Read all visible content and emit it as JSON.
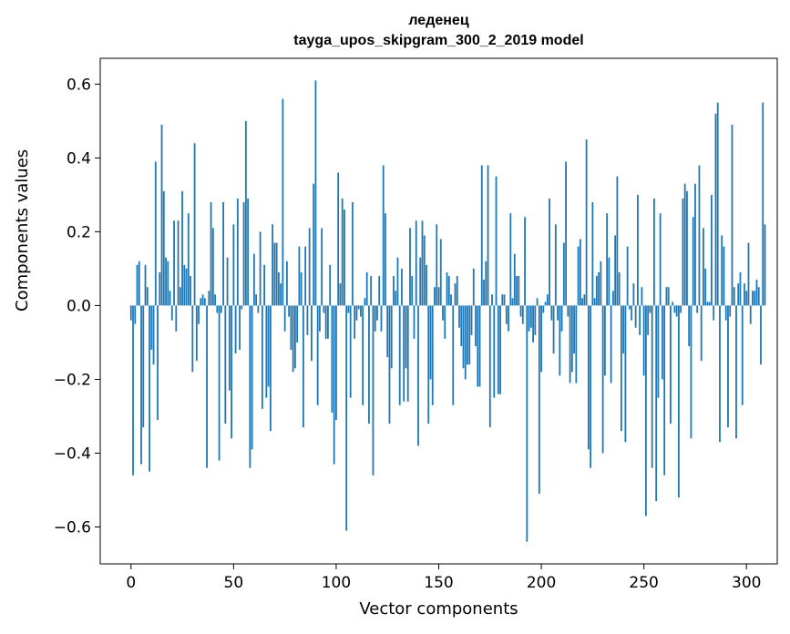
{
  "chart_data": {
    "type": "bar",
    "title_line1": "леденец",
    "title_line2": "tayga_upos_skipgram_300_2_2019 model",
    "xlabel": "Vector components",
    "ylabel": "Components values",
    "xlim": [
      -15,
      315
    ],
    "ylim": [
      -0.7,
      0.67
    ],
    "xticks": [
      0,
      50,
      100,
      150,
      200,
      250,
      300
    ],
    "yticks": [
      -0.6,
      -0.4,
      -0.2,
      0.0,
      0.2,
      0.4,
      0.6
    ],
    "ytick_labels": [
      "−0.6",
      "−0.4",
      "−0.2",
      "0.0",
      "0.2",
      "0.4",
      "0.6"
    ],
    "bar_color": "#1f77b4",
    "values": [
      -0.04,
      -0.46,
      -0.05,
      0.11,
      0.12,
      -0.43,
      -0.33,
      0.11,
      0.05,
      -0.45,
      -0.12,
      -0.16,
      0.39,
      -0.31,
      0.09,
      0.49,
      0.31,
      0.13,
      0.12,
      0.04,
      -0.04,
      0.23,
      -0.07,
      0.23,
      0.05,
      0.31,
      0.11,
      0.1,
      0.25,
      0.08,
      -0.18,
      0.44,
      -0.15,
      -0.05,
      0.02,
      0.03,
      0.02,
      -0.44,
      0.04,
      0.28,
      0.21,
      0.03,
      -0.02,
      -0.42,
      -0.02,
      0.28,
      -0.32,
      0.13,
      -0.23,
      -0.36,
      0.22,
      -0.13,
      0.29,
      -0.12,
      -0.01,
      0.28,
      0.5,
      0.29,
      -0.44,
      -0.39,
      0.14,
      0.03,
      -0.02,
      0.2,
      -0.28,
      0.11,
      -0.25,
      -0.22,
      -0.34,
      0.22,
      0.17,
      0.17,
      0.09,
      0.06,
      0.56,
      -0.07,
      0.12,
      -0.03,
      -0.12,
      -0.18,
      -0.17,
      -0.1,
      0.16,
      0.09,
      -0.33,
      0.16,
      -0.08,
      0.21,
      -0.15,
      0.33,
      0.61,
      -0.27,
      -0.07,
      0.21,
      -0.02,
      -0.09,
      -0.09,
      0.11,
      -0.29,
      -0.43,
      -0.31,
      0.36,
      0.06,
      0.29,
      0.26,
      -0.61,
      -0.02,
      -0.25,
      0.28,
      -0.09,
      -0.04,
      -0.01,
      -0.03,
      -0.27,
      0.02,
      0.09,
      -0.32,
      0.08,
      -0.46,
      -0.07,
      -0.04,
      0.08,
      -0.07,
      0.38,
      0.25,
      -0.14,
      -0.32,
      -0.17,
      0.08,
      0.04,
      0.13,
      -0.27,
      0.1,
      -0.26,
      -0.17,
      -0.26,
      0.21,
      0.08,
      -0.09,
      0.23,
      -0.38,
      0.13,
      0.23,
      0.19,
      0.11,
      -0.32,
      -0.2,
      -0.27,
      0.05,
      0.22,
      0.05,
      0.18,
      -0.04,
      -0.09,
      0.09,
      0.08,
      0.03,
      -0.27,
      0.06,
      0.08,
      -0.06,
      -0.11,
      -0.17,
      -0.2,
      -0.16,
      -0.16,
      -0.08,
      0.1,
      -0.11,
      -0.22,
      -0.22,
      0.38,
      0.07,
      0.12,
      0.38,
      -0.33,
      0.03,
      -0.25,
      0.35,
      -0.24,
      -0.24,
      0.03,
      0.03,
      -0.05,
      -0.07,
      0.25,
      0.02,
      0.14,
      0.08,
      0.08,
      -0.03,
      -0.05,
      0.24,
      -0.64,
      -0.07,
      -0.06,
      -0.1,
      -0.08,
      0.02,
      -0.51,
      -0.18,
      -0.02,
      0.01,
      0.03,
      0.29,
      -0.04,
      -0.13,
      0.22,
      -0.04,
      -0.19,
      -0.07,
      0.17,
      0.39,
      -0.03,
      -0.21,
      -0.18,
      -0.13,
      -0.21,
      0.16,
      0.18,
      0.02,
      0.03,
      0.45,
      -0.39,
      -0.44,
      0.28,
      0.02,
      0.08,
      0.09,
      0.12,
      -0.4,
      -0.19,
      0.25,
      0.13,
      -0.21,
      0.04,
      0.19,
      0.35,
      0.09,
      -0.34,
      -0.13,
      -0.37,
      0.16,
      -0.01,
      -0.04,
      0.06,
      -0.06,
      0.3,
      -0.08,
      0.05,
      -0.19,
      -0.57,
      -0.08,
      -0.02,
      -0.44,
      0.29,
      -0.53,
      -0.25,
      0.25,
      -0.2,
      -0.46,
      0.05,
      0.05,
      -0.32,
      0.01,
      -0.02,
      -0.03,
      -0.52,
      -0.02,
      0.29,
      0.33,
      0.31,
      -0.11,
      -0.36,
      0.24,
      0.33,
      -0.02,
      0.38,
      -0.15,
      0.21,
      0.1,
      0.01,
      0.01,
      0.3,
      -0.04,
      0.52,
      0.55,
      -0.37,
      0.19,
      0.16,
      -0.04,
      -0.33,
      -0.03,
      0.49,
      0.05,
      -0.36,
      0.06,
      0.09,
      -0.27,
      0.06,
      0.04,
      0.17,
      -0.05,
      0.04,
      0.04,
      0.07,
      0.05,
      -0.16,
      0.55,
      0.22
    ]
  }
}
